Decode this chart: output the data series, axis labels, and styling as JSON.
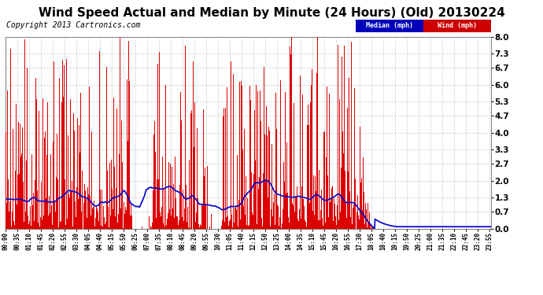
{
  "title": "Wind Speed Actual and Median by Minute (24 Hours) (Old) 20130224",
  "copyright": "Copyright 2013 Cartronics.com",
  "yticks": [
    0.0,
    0.7,
    1.3,
    2.0,
    2.7,
    3.3,
    4.0,
    4.7,
    5.3,
    6.0,
    6.7,
    7.3,
    8.0
  ],
  "ylim": [
    0.0,
    8.0
  ],
  "xlim": [
    0,
    1440
  ],
  "legend_median_label": "Median (mph)",
  "legend_wind_label": "Wind (mph)",
  "legend_median_color": "#0000bb",
  "legend_wind_color": "#cc0000",
  "wind_color": "#dd0000",
  "median_color": "#0000cc",
  "bg_color": "#ffffff",
  "grid_color": "#cccccc",
  "title_fontsize": 11,
  "copyright_fontsize": 7,
  "total_minutes": 1440,
  "label_step": 35,
  "wind_active_end": 1065,
  "wind_dropoff_end": 1095,
  "median_dropoff_start": 1060,
  "median_dropoff_end": 1095,
  "median_flat_value": 0.08
}
